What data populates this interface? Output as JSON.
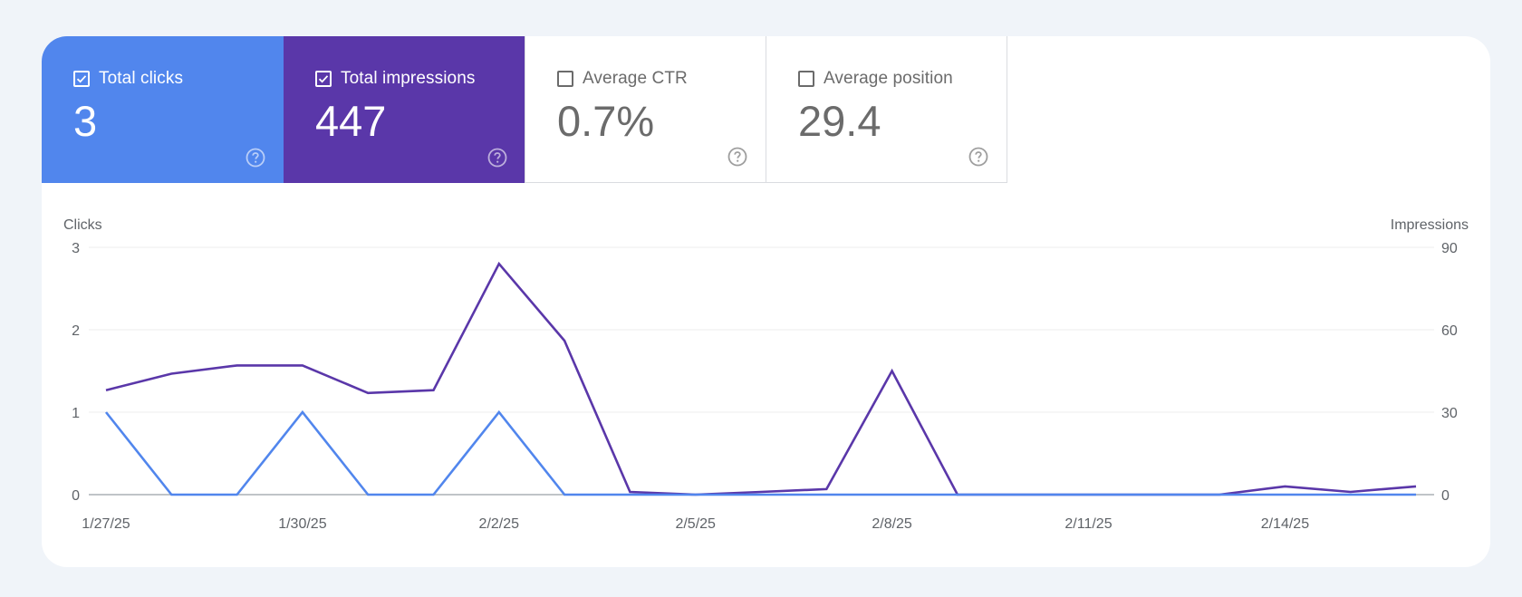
{
  "metrics": [
    {
      "label": "Total clicks",
      "value": "3",
      "checked": true,
      "color": "#5186ed"
    },
    {
      "label": "Total impressions",
      "value": "447",
      "checked": true,
      "color": "#5a37a9"
    },
    {
      "label": "Average CTR",
      "value": "0.7%",
      "checked": false
    },
    {
      "label": "Average position",
      "value": "29.4",
      "checked": false
    }
  ],
  "icons": {
    "checkbox_checked": "check-icon",
    "help": "help-icon"
  },
  "chart_data": {
    "type": "line",
    "left_axis_title": "Clicks",
    "right_axis_title": "Impressions",
    "left_ticks": [
      "0",
      "1",
      "2",
      "3"
    ],
    "right_ticks": [
      "0",
      "30",
      "60",
      "90"
    ],
    "left_ylim": [
      0,
      3
    ],
    "right_ylim": [
      0,
      90
    ],
    "x": [
      "1/27/25",
      "1/28/25",
      "1/29/25",
      "1/30/25",
      "1/31/25",
      "2/1/25",
      "2/2/25",
      "2/3/25",
      "2/4/25",
      "2/5/25",
      "2/6/25",
      "2/7/25",
      "2/8/25",
      "2/9/25",
      "2/10/25",
      "2/11/25",
      "2/12/25",
      "2/13/25",
      "2/14/25",
      "2/15/25",
      "2/16/25"
    ],
    "x_tick_labels": [
      "1/27/25",
      "1/30/25",
      "2/2/25",
      "2/5/25",
      "2/8/25",
      "2/11/25",
      "2/14/25"
    ],
    "grid": true,
    "series": [
      {
        "name": "Total clicks",
        "axis": "left",
        "color": "#5186ed",
        "values": [
          1,
          0,
          0,
          1,
          0,
          0,
          1,
          0,
          0,
          0,
          0,
          0,
          0,
          0,
          0,
          0,
          0,
          0,
          0,
          0,
          0
        ]
      },
      {
        "name": "Total impressions",
        "axis": "right",
        "color": "#5a37a9",
        "values": [
          38,
          44,
          47,
          47,
          37,
          38,
          84,
          56,
          1,
          0,
          1,
          2,
          45,
          0,
          0,
          0,
          0,
          0,
          3,
          1,
          3
        ]
      }
    ]
  }
}
